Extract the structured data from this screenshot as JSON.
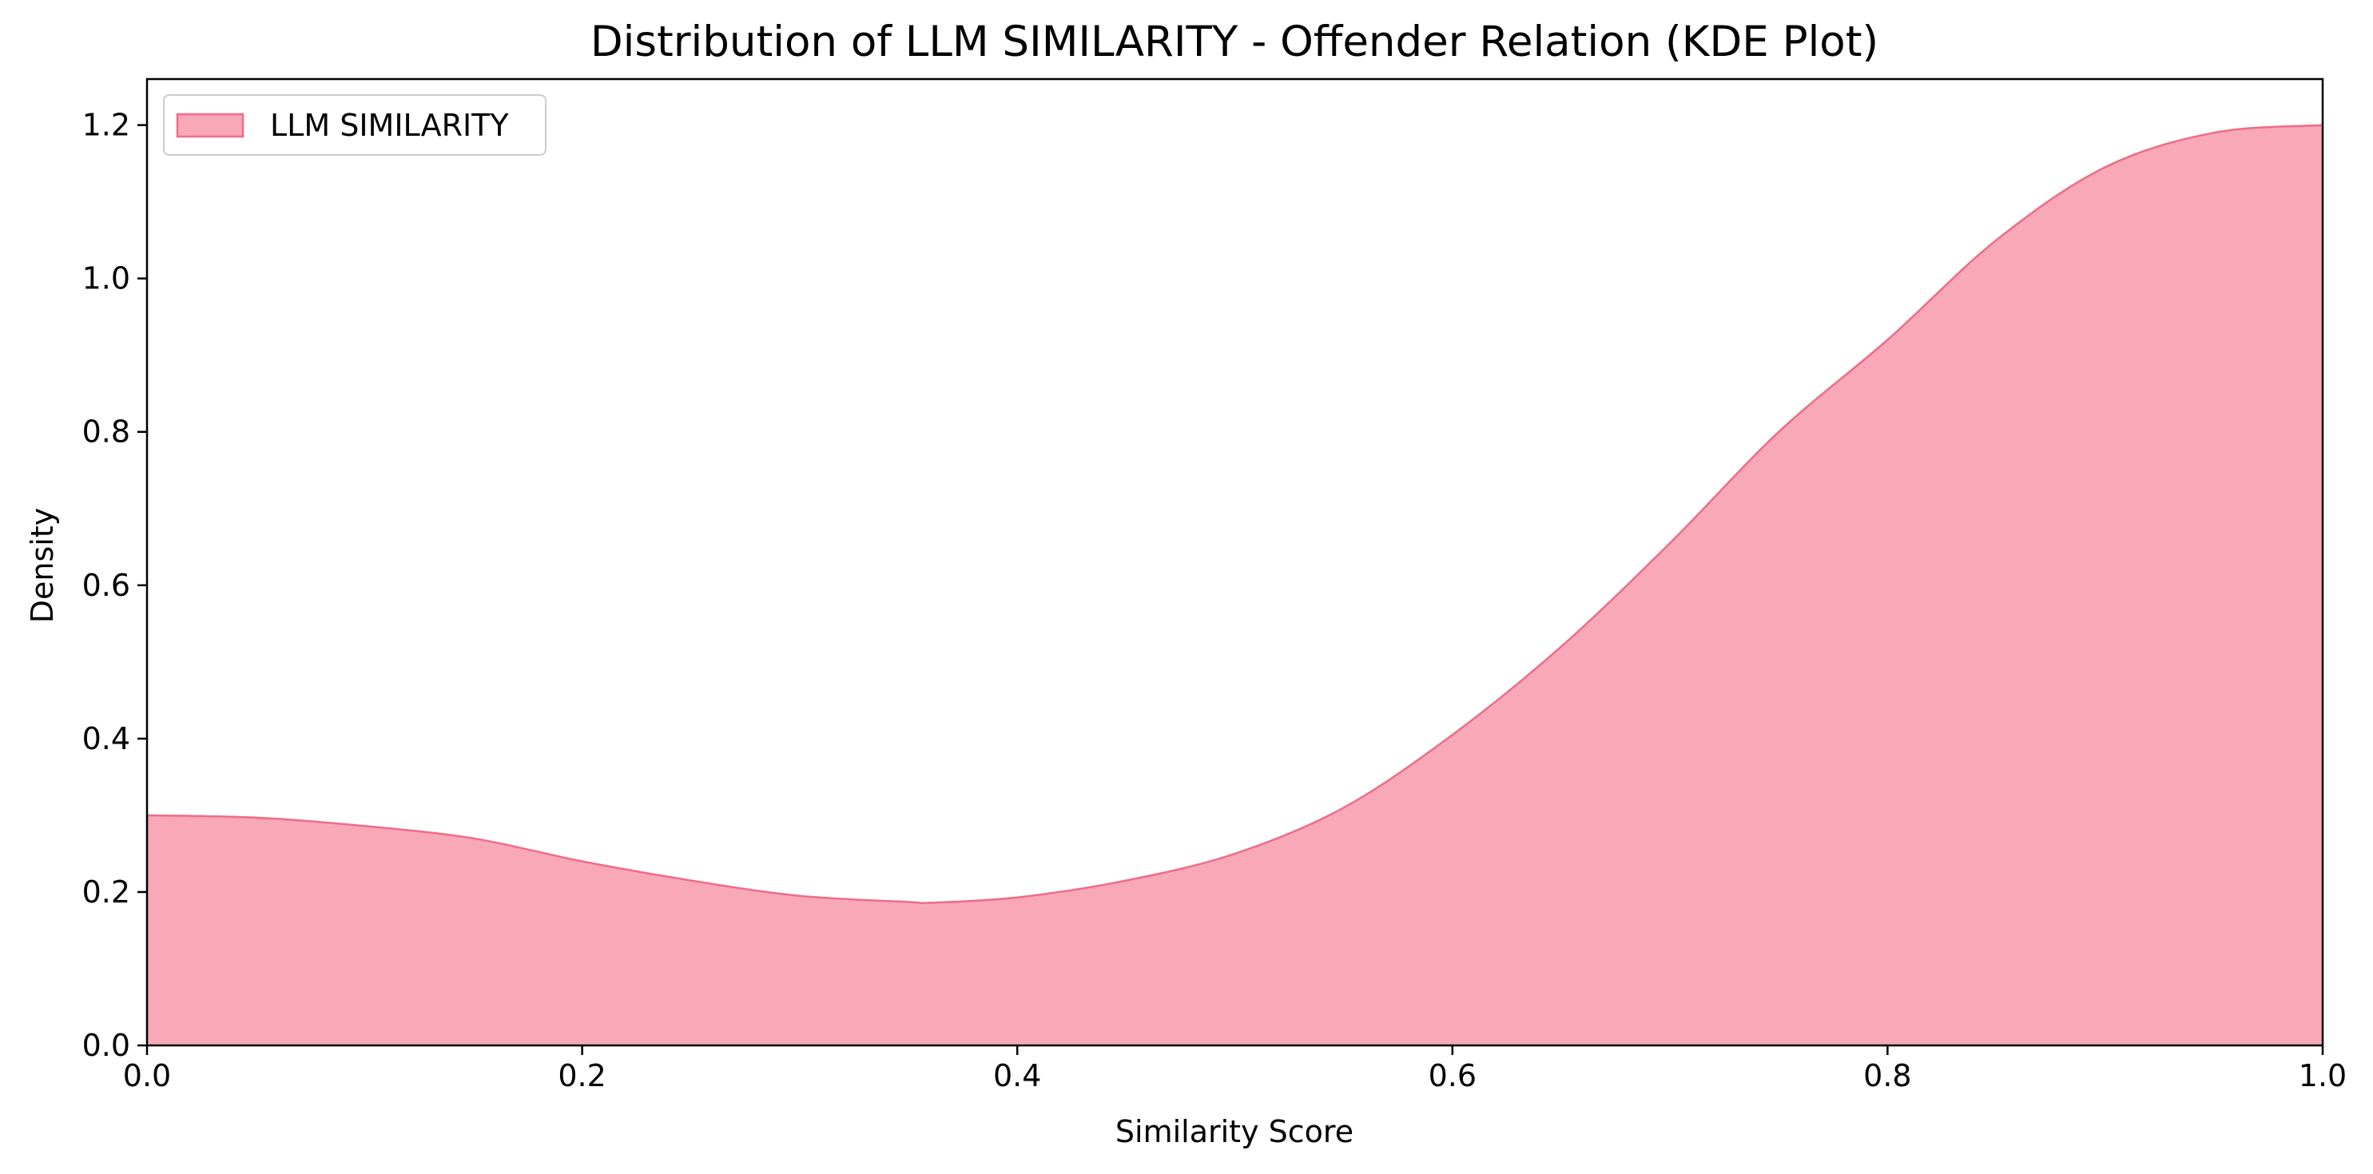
{
  "chart_data": {
    "type": "area",
    "title": "Distribution of LLM SIMILARITY - Offender Relation (KDE Plot)",
    "xlabel": "Similarity Score",
    "ylabel": "Density",
    "xlim": [
      0.0,
      1.0
    ],
    "ylim": [
      0.0,
      1.26
    ],
    "grid": false,
    "legend": {
      "position": "top-left",
      "entries": [
        "LLM SIMILARITY"
      ]
    },
    "x_ticks": [
      {
        "value": 0.0,
        "label": "0.0"
      },
      {
        "value": 0.2,
        "label": "0.2"
      },
      {
        "value": 0.4,
        "label": "0.4"
      },
      {
        "value": 0.6,
        "label": "0.6"
      },
      {
        "value": 0.8,
        "label": "0.8"
      },
      {
        "value": 1.0,
        "label": "1.0"
      }
    ],
    "y_ticks": [
      {
        "value": 0.0,
        "label": "0.0"
      },
      {
        "value": 0.2,
        "label": "0.2"
      },
      {
        "value": 0.4,
        "label": "0.4"
      },
      {
        "value": 0.6,
        "label": "0.6"
      },
      {
        "value": 0.8,
        "label": "0.8"
      },
      {
        "value": 1.0,
        "label": "1.0"
      },
      {
        "value": 1.2,
        "label": "1.2"
      }
    ],
    "series": [
      {
        "name": "LLM SIMILARITY",
        "color": "#f9a8b7",
        "line_color": "#f06b8a",
        "x": [
          0.0,
          0.05,
          0.1,
          0.15,
          0.2,
          0.25,
          0.3,
          0.35,
          0.36,
          0.4,
          0.45,
          0.5,
          0.55,
          0.6,
          0.65,
          0.7,
          0.75,
          0.8,
          0.85,
          0.9,
          0.95,
          1.0
        ],
        "y": [
          0.3,
          0.297,
          0.286,
          0.27,
          0.24,
          0.215,
          0.195,
          0.187,
          0.186,
          0.193,
          0.215,
          0.25,
          0.31,
          0.405,
          0.52,
          0.655,
          0.8,
          0.92,
          1.05,
          1.145,
          1.19,
          1.2
        ]
      }
    ]
  }
}
